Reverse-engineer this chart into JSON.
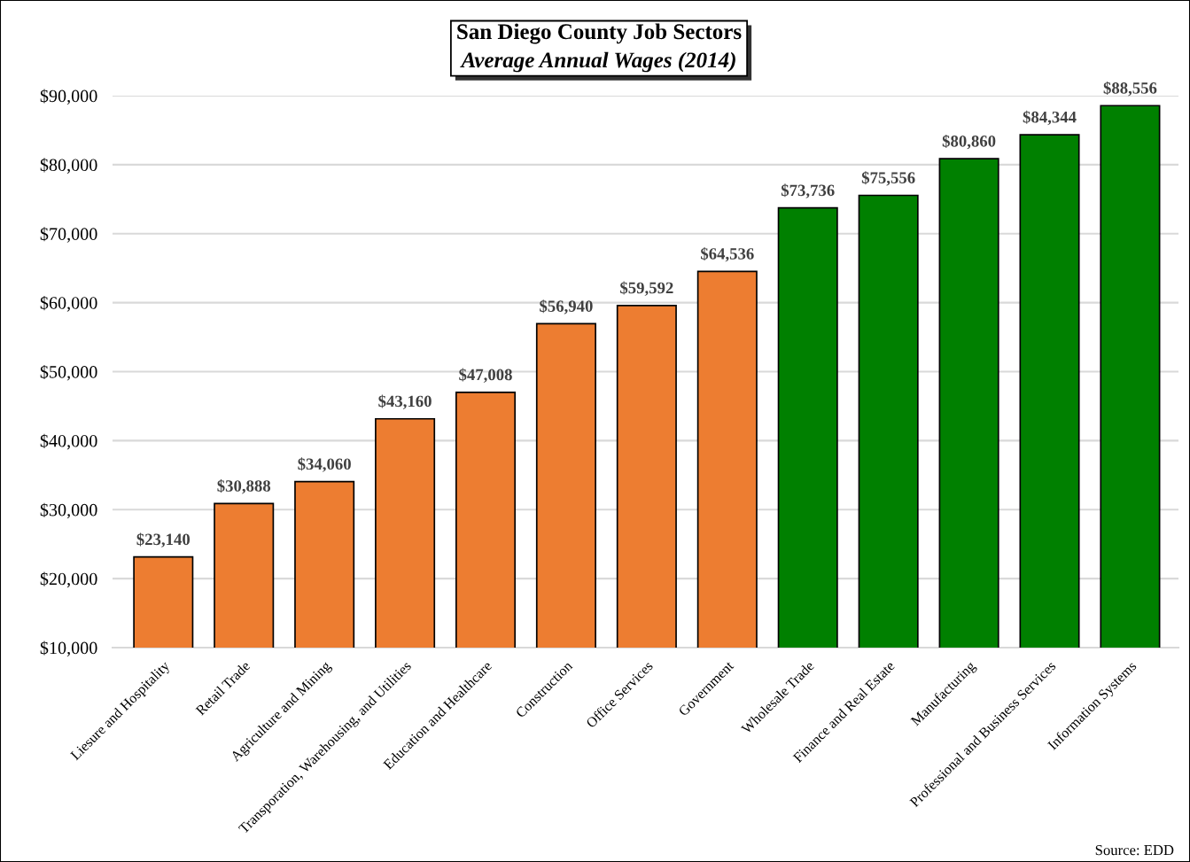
{
  "chart_data": {
    "type": "bar",
    "title": "San Diego County Job Sectors",
    "subtitle": "Average Annual Wages (2014)",
    "categories": [
      "Liesure and Hospitality",
      "Retail Trade",
      "Agriculture and Mining",
      "Transporation, Warehousing, and Utilities",
      "Education and Healthcare",
      "Construction",
      "Office Services",
      "Government",
      "Wholesale Trade",
      "Finance and Real Estate",
      "Manufacturing",
      "Professional and Business Services",
      "Information Systems"
    ],
    "values": [
      23140,
      30888,
      34060,
      43160,
      47008,
      56940,
      59592,
      64536,
      73736,
      75556,
      80860,
      84344,
      88556
    ],
    "colors": [
      "#ed7d31",
      "#ed7d31",
      "#ed7d31",
      "#ed7d31",
      "#ed7d31",
      "#ed7d31",
      "#ed7d31",
      "#ed7d31",
      "#008000",
      "#008000",
      "#008000",
      "#008000",
      "#008000"
    ],
    "value_labels": [
      "$23,140",
      "$30,888",
      "$34,060",
      "$43,160",
      "$47,008",
      "$56,940",
      "$59,592",
      "$64,536",
      "$73,736",
      "$75,556",
      "$80,860",
      "$84,344",
      "$88,556"
    ],
    "ylim": [
      10000,
      90000
    ],
    "yticks": [
      {
        "value": 10000,
        "label": "$10,000"
      },
      {
        "value": 20000,
        "label": "$20,000"
      },
      {
        "value": 30000,
        "label": "$30,000"
      },
      {
        "value": 40000,
        "label": "$40,000"
      },
      {
        "value": 50000,
        "label": "$50,000"
      },
      {
        "value": 60000,
        "label": "$60,000"
      },
      {
        "value": 70000,
        "label": "$70,000"
      },
      {
        "value": 80000,
        "label": "$80,000"
      },
      {
        "value": 90000,
        "label": "$90,000"
      }
    ],
    "grid": "y",
    "annotations": [
      "Source: EDD"
    ]
  }
}
